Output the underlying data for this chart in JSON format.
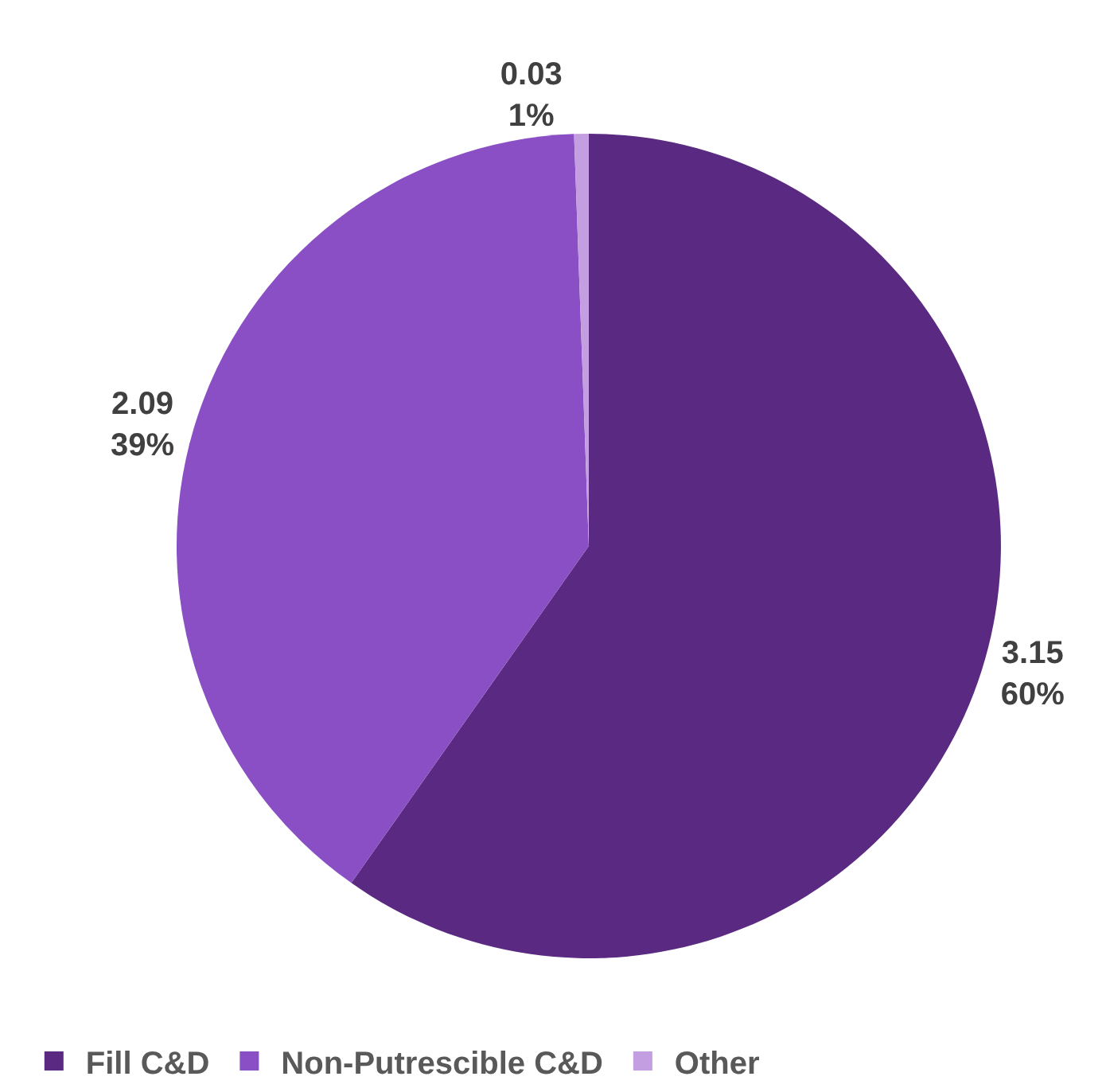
{
  "chart_data": {
    "type": "pie",
    "categories": [
      "Fill C&D",
      "Non-Putrescible C&D",
      "Other"
    ],
    "values": [
      3.15,
      2.09,
      0.03
    ],
    "colors": [
      "#5a2a82",
      "#8a4fc4",
      "#c39ee0"
    ],
    "value_labels": [
      "3.15\n60%",
      "2.09\n39%",
      "0.03\n1%"
    ],
    "legend": "bottom"
  }
}
